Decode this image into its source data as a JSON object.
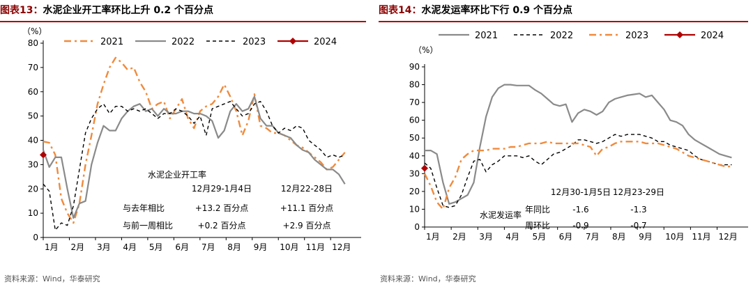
{
  "left": {
    "label": "图表13：",
    "title": "水泥企业开工率环比上升 0.2 个百分点",
    "footer": "资料来源：Wind，华泰研究",
    "chart_data": {
      "type": "line",
      "ylabel": "（%）",
      "ylim": [
        0,
        80
      ],
      "yticks": [
        0,
        10,
        20,
        30,
        40,
        50,
        60,
        70,
        80
      ],
      "months": [
        "1月",
        "2月",
        "3月",
        "4月",
        "5月",
        "6月",
        "7月",
        "8月",
        "9月",
        "10月",
        "11月",
        "12月"
      ],
      "xlim": [
        0,
        52
      ],
      "grid": false,
      "legend_position": "top",
      "series": [
        {
          "name": "2021",
          "color": "#f08a3c",
          "style": "dashdot",
          "x": [
            0,
            1,
            2,
            3,
            4,
            5,
            6,
            7,
            8,
            9,
            10,
            11,
            12,
            13,
            14,
            15,
            16,
            17,
            18,
            19,
            20,
            21,
            22,
            23,
            24,
            25,
            26,
            27,
            28,
            29,
            30,
            31,
            32,
            33,
            34,
            35,
            36,
            37,
            38,
            39,
            40,
            41,
            42,
            43,
            44,
            45,
            46,
            47,
            48,
            49,
            50
          ],
          "y": [
            39.5,
            39,
            34,
            16,
            10,
            6,
            14,
            30,
            42,
            55,
            63,
            70,
            74,
            72,
            69,
            70,
            64,
            60,
            53,
            55,
            56,
            49,
            53,
            57,
            49,
            45,
            52,
            54,
            55,
            58,
            63,
            58,
            52,
            42,
            48,
            59,
            46,
            45,
            43,
            43,
            42,
            40,
            38,
            37,
            35,
            33,
            31,
            28,
            29,
            32,
            35
          ]
        },
        {
          "name": "2022",
          "color": "#8a8a8a",
          "style": "solid",
          "x": [
            0,
            1,
            2,
            3,
            4,
            5,
            6,
            7,
            8,
            9,
            10,
            11,
            12,
            13,
            14,
            15,
            16,
            17,
            18,
            19,
            20,
            21,
            22,
            23,
            24,
            25,
            26,
            27,
            28,
            29,
            30,
            31,
            32,
            33,
            34,
            35,
            36,
            37,
            38,
            39,
            40,
            41,
            42,
            43,
            44,
            45,
            46,
            47,
            48,
            49,
            50
          ],
          "y": [
            36,
            29,
            33,
            33,
            20,
            8,
            14,
            15,
            30,
            39,
            46,
            44,
            44,
            49,
            52,
            54,
            55,
            52,
            53,
            50,
            53,
            51,
            51,
            52,
            52,
            51,
            51,
            50,
            48,
            41,
            44,
            52,
            55,
            52,
            53,
            58,
            49,
            46,
            46,
            43,
            42,
            41,
            38,
            36,
            35,
            32,
            30,
            28,
            28,
            26,
            22
          ]
        },
        {
          "name": "2023",
          "color": "#000000",
          "style": "dashed",
          "x": [
            0,
            1,
            2,
            3,
            4,
            5,
            6,
            7,
            8,
            9,
            10,
            11,
            12,
            13,
            14,
            15,
            16,
            17,
            18,
            19,
            20,
            21,
            22,
            23,
            24,
            25,
            26,
            27,
            28,
            29,
            30,
            31,
            32,
            33,
            34,
            35,
            36,
            37,
            38,
            39,
            40,
            41,
            42,
            43,
            44,
            45,
            46,
            47,
            48,
            49,
            50
          ],
          "y": [
            22,
            19,
            3,
            6,
            5,
            13,
            28,
            43,
            49,
            53,
            55,
            51,
            54,
            54,
            52,
            53,
            52,
            53,
            51,
            49,
            51,
            51,
            53,
            52,
            50,
            47,
            50,
            42,
            53,
            54,
            55,
            56,
            53,
            50,
            51,
            55,
            56,
            52,
            46,
            43,
            45,
            44,
            46,
            45,
            40,
            38,
            36,
            33,
            34,
            33,
            34
          ]
        },
        {
          "name": "2024",
          "color": "#b00000",
          "style": "marker",
          "x": [
            0
          ],
          "y": [
            34
          ]
        }
      ],
      "annotation": {
        "heading": "水泥企业开工率",
        "col1_header": "12月29-1月4日",
        "col2_header": "12月22-28日",
        "row1_label": "与去年相比",
        "row1_val1": "+13.2 百分点",
        "row1_val2": "+11.1 百分点",
        "row2_label": "与前一周相比",
        "row2_val1": "+0.2 百分点",
        "row2_val2": "+2.9 百分点"
      }
    }
  },
  "right": {
    "label": "图表14：",
    "title": "水泥发运率环比下行 0.9 个百分点",
    "footer": "资料来源：Wind，华泰研究",
    "chart_data": {
      "type": "line",
      "ylabel": "（%）",
      "ylim": [
        0,
        90
      ],
      "yticks": [
        0,
        10,
        20,
        30,
        40,
        50,
        60,
        70,
        80,
        90
      ],
      "months": [
        "1月",
        "2月",
        "3月",
        "4月",
        "5月",
        "6月",
        "7月",
        "8月",
        "9月",
        "10月",
        "11月",
        "12月"
      ],
      "xlim": [
        0,
        52
      ],
      "grid": false,
      "legend_position": "top",
      "series": [
        {
          "name": "2021",
          "color": "#8a8a8a",
          "style": "solid",
          "x": [
            0,
            1,
            2,
            3,
            4,
            5,
            6,
            7,
            8,
            9,
            10,
            11,
            12,
            13,
            14,
            15,
            16,
            17,
            18,
            19,
            20,
            21,
            22,
            23,
            24,
            25,
            26,
            27,
            28,
            29,
            30,
            31,
            32,
            33,
            34,
            35,
            36,
            37,
            38,
            39,
            40,
            41,
            42,
            43,
            44,
            45,
            46,
            47,
            48,
            49,
            50
          ],
          "y": [
            43,
            43,
            41,
            25,
            13,
            14,
            16,
            18,
            25,
            45,
            62,
            73,
            78,
            80,
            80,
            79.5,
            79.5,
            79.5,
            77,
            75,
            72,
            69,
            68,
            69,
            59,
            64,
            66,
            65,
            63,
            65,
            70,
            72,
            73,
            74,
            74.5,
            75,
            73,
            74,
            70,
            66,
            60,
            59,
            57,
            52,
            49,
            47,
            45,
            43,
            41,
            40,
            39
          ]
        },
        {
          "name": "2022",
          "color": "#000000",
          "style": "dashed",
          "x": [
            0,
            1,
            2,
            3,
            4,
            5,
            6,
            7,
            8,
            9,
            10,
            11,
            12,
            13,
            14,
            15,
            16,
            17,
            18,
            19,
            20,
            21,
            22,
            23,
            24,
            25,
            26,
            27,
            28,
            29,
            30,
            31,
            32,
            33,
            34,
            35,
            36,
            37,
            38,
            39,
            40,
            41,
            42,
            43,
            44,
            45,
            46,
            47,
            48,
            49,
            50
          ],
          "y": [
            36,
            33,
            22,
            12,
            11,
            12,
            18,
            28,
            37,
            38,
            31,
            35,
            37,
            40,
            40,
            40,
            39,
            40,
            37,
            35,
            38,
            41,
            42,
            44,
            46,
            49,
            49,
            48,
            47,
            48,
            50,
            52,
            51,
            52,
            52,
            52,
            51,
            50,
            48,
            48,
            46,
            45,
            44,
            43,
            40,
            38,
            37,
            36,
            35,
            35,
            35
          ]
        },
        {
          "name": "2023",
          "color": "#f08a3c",
          "style": "dashdot",
          "x": [
            0,
            1,
            2,
            3,
            4,
            5,
            6,
            7,
            8,
            9,
            10,
            11,
            12,
            13,
            14,
            15,
            16,
            17,
            18,
            19,
            20,
            21,
            22,
            23,
            24,
            25,
            26,
            27,
            28,
            29,
            30,
            31,
            32,
            33,
            34,
            35,
            36,
            37,
            38,
            39,
            40,
            41,
            42,
            43,
            44,
            45,
            46,
            47,
            48,
            49,
            50
          ],
          "y": [
            30,
            23,
            14,
            10,
            22,
            28,
            38,
            41,
            43,
            43,
            43,
            44,
            44,
            44,
            45,
            45,
            46,
            47,
            47,
            47,
            48,
            47,
            47,
            47,
            47,
            47,
            46,
            45,
            40,
            44,
            45,
            47,
            48,
            48,
            48,
            48,
            47,
            47,
            47,
            46,
            45,
            44,
            42,
            40,
            39,
            38,
            37,
            36,
            35,
            34,
            34
          ]
        },
        {
          "name": "2024",
          "color": "#b00000",
          "style": "marker",
          "x": [
            0
          ],
          "y": [
            33
          ]
        }
      ],
      "annotation": {
        "heading": "水泥发运率",
        "col1_header": "12月30-1月5日",
        "col2_header": "12月23-29日",
        "row1_label": "年同比",
        "row1_val1": "-1.6",
        "row1_val2": "-1.3",
        "row2_label": "周环比",
        "row2_val1": "-0.9",
        "row2_val2": "-0.7"
      }
    }
  }
}
